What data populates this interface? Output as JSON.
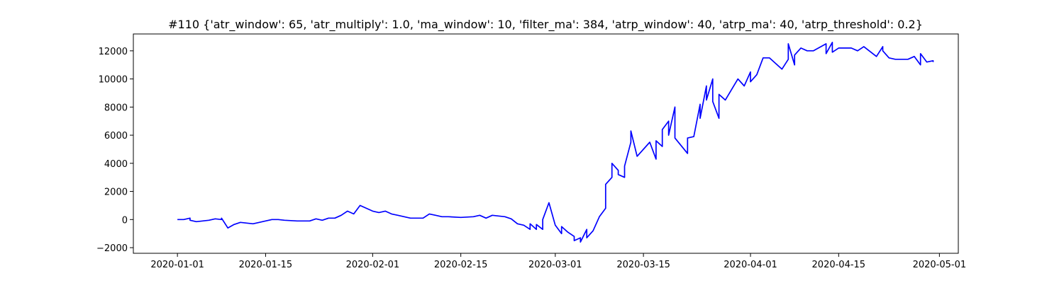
{
  "chart_data": {
    "type": "line",
    "title": "#110 {'atr_window': 65, 'atr_multiply': 1.0, 'ma_window': 10, 'filter_ma': 384, 'atrp_window': 40, 'atrp_ma': 40, 'atrp_threshold': 0.2}",
    "xlabel": "",
    "ylabel": "",
    "x_type": "date",
    "xlim": [
      "2019-12-25",
      "2020-05-04"
    ],
    "ylim": [
      -2400,
      13200
    ],
    "x_ticks": [
      "2020-01-01",
      "2020-01-15",
      "2020-02-01",
      "2020-02-15",
      "2020-03-01",
      "2020-03-15",
      "2020-04-01",
      "2020-04-15",
      "2020-05-01"
    ],
    "y_ticks": [
      -2000,
      0,
      2000,
      4000,
      6000,
      8000,
      10000,
      12000
    ],
    "y_tick_labels": [
      "−2000",
      "0",
      "2000",
      "4000",
      "6000",
      "8000",
      "10000",
      "12000"
    ],
    "grid": false,
    "legend": null,
    "line_color": "#0000ff",
    "series": [
      {
        "x": [
          "2020-01-01",
          "2020-01-02",
          "2020-01-03",
          "2020-01-03",
          "2020-01-04",
          "2020-01-05",
          "2020-01-06",
          "2020-01-07",
          "2020-01-08",
          "2020-01-08",
          "2020-01-09",
          "2020-01-10",
          "2020-01-11",
          "2020-01-12",
          "2020-01-13",
          "2020-01-14",
          "2020-01-15",
          "2020-01-16",
          "2020-01-17",
          "2020-01-18",
          "2020-01-20",
          "2020-01-22",
          "2020-01-23",
          "2020-01-24",
          "2020-01-25",
          "2020-01-26",
          "2020-01-27",
          "2020-01-28",
          "2020-01-29",
          "2020-01-30",
          "2020-01-31",
          "2020-02-01",
          "2020-02-02",
          "2020-02-03",
          "2020-02-04",
          "2020-02-05",
          "2020-02-06",
          "2020-02-07",
          "2020-02-09",
          "2020-02-10",
          "2020-02-11",
          "2020-02-12",
          "2020-02-13",
          "2020-02-15",
          "2020-02-17",
          "2020-02-18",
          "2020-02-19",
          "2020-02-20",
          "2020-02-22",
          "2020-02-23",
          "2020-02-24",
          "2020-02-25",
          "2020-02-26",
          "2020-02-26",
          "2020-02-27",
          "2020-02-27",
          "2020-02-28",
          "2020-02-28",
          "2020-02-29",
          "2020-03-01",
          "2020-03-02",
          "2020-03-02",
          "2020-03-03",
          "2020-03-04",
          "2020-03-04",
          "2020-03-05",
          "2020-03-05",
          "2020-03-06",
          "2020-03-06",
          "2020-03-07",
          "2020-03-08",
          "2020-03-09",
          "2020-03-09",
          "2020-03-10",
          "2020-03-10",
          "2020-03-11",
          "2020-03-11",
          "2020-03-12",
          "2020-03-12",
          "2020-03-13",
          "2020-03-13",
          "2020-03-14",
          "2020-03-16",
          "2020-03-17",
          "2020-03-17",
          "2020-03-18",
          "2020-03-18",
          "2020-03-19",
          "2020-03-19",
          "2020-03-20",
          "2020-03-20",
          "2020-03-22",
          "2020-03-22",
          "2020-03-23",
          "2020-03-24",
          "2020-03-24",
          "2020-03-25",
          "2020-03-25",
          "2020-03-26",
          "2020-03-26",
          "2020-03-27",
          "2020-03-27",
          "2020-03-28",
          "2020-03-30",
          "2020-03-31",
          "2020-04-01",
          "2020-04-01",
          "2020-04-02",
          "2020-04-03",
          "2020-04-04",
          "2020-04-06",
          "2020-04-07",
          "2020-04-07",
          "2020-04-08",
          "2020-04-08",
          "2020-04-09",
          "2020-04-10",
          "2020-04-11",
          "2020-04-13",
          "2020-04-13",
          "2020-04-14",
          "2020-04-14",
          "2020-04-15",
          "2020-04-16",
          "2020-04-17",
          "2020-04-18",
          "2020-04-19",
          "2020-04-21",
          "2020-04-22",
          "2020-04-22",
          "2020-04-23",
          "2020-04-24",
          "2020-04-25",
          "2020-04-26",
          "2020-04-27",
          "2020-04-28",
          "2020-04-28",
          "2020-04-29",
          "2020-04-30",
          "2020-04-30"
        ],
        "y": [
          0,
          0,
          100,
          -50,
          -150,
          -100,
          -50,
          50,
          0,
          100,
          -600,
          -350,
          -200,
          -250,
          -300,
          -200,
          -100,
          0,
          0,
          -50,
          -100,
          -100,
          50,
          -50,
          100,
          100,
          300,
          600,
          400,
          1000,
          800,
          600,
          500,
          600,
          400,
          300,
          200,
          100,
          100,
          400,
          300,
          200,
          200,
          150,
          200,
          300,
          100,
          300,
          200,
          50,
          -300,
          -400,
          -700,
          -300,
          -700,
          -350,
          -700,
          0,
          1200,
          -400,
          -1000,
          -500,
          -900,
          -1200,
          -1500,
          -1300,
          -1600,
          -700,
          -1300,
          -800,
          200,
          800,
          2500,
          3000,
          4000,
          3500,
          3200,
          3000,
          3800,
          5500,
          6300,
          4500,
          5500,
          4300,
          5600,
          5200,
          6400,
          7000,
          6000,
          8000,
          5800,
          4700,
          5800,
          5900,
          8200,
          7200,
          9500,
          8500,
          10000,
          8400,
          7200,
          8900,
          8500,
          10000,
          9500,
          10500,
          9800,
          10300,
          11500,
          11500,
          10700,
          11400,
          12500,
          11000,
          11700,
          12200,
          12000,
          12000,
          12500,
          11800,
          12600,
          11900,
          12200,
          12200,
          12200,
          12000,
          12300,
          11600,
          12300,
          12000,
          11500,
          11400,
          11400,
          11400,
          11600,
          11000,
          11800,
          11200,
          11300,
          11200
        ]
      }
    ]
  }
}
